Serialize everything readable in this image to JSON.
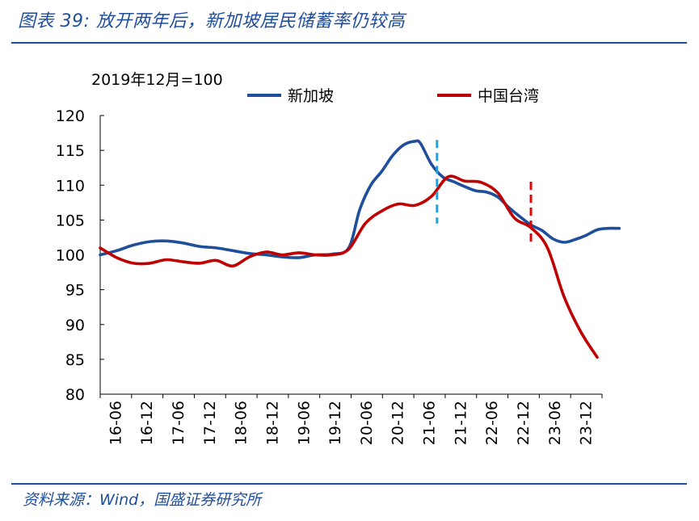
{
  "figure": {
    "title": "图表 39:  放开两年后，新加坡居民储蓄率仍较高",
    "source": "资料来源：Wind，国盛证券研究所"
  },
  "colors": {
    "accent": "#1f4e9c",
    "singapore": "#1f4e9c",
    "taiwan": "#c00000",
    "marker_cyan": "#1aa3e0",
    "marker_red": "#e00000"
  },
  "chart_data": {
    "type": "line",
    "unit_label": "2019年12月=100",
    "ylim": [
      80,
      120
    ],
    "yticks": [
      80,
      85,
      90,
      95,
      100,
      105,
      110,
      115,
      120
    ],
    "xticks": [
      "16-06",
      "16-12",
      "17-06",
      "17-12",
      "18-06",
      "18-12",
      "19-06",
      "19-12",
      "20-06",
      "20-12",
      "21-06",
      "21-12",
      "22-06",
      "22-12",
      "23-06",
      "23-12"
    ],
    "xrange": [
      0,
      90
    ],
    "grid": false,
    "legend_position": "top",
    "series": [
      {
        "name": "新加坡",
        "color": "#1f4e9c",
        "points": [
          [
            0,
            100.0
          ],
          [
            3,
            100.6
          ],
          [
            6,
            101.4
          ],
          [
            9,
            101.9
          ],
          [
            12,
            102.0
          ],
          [
            15,
            101.7
          ],
          [
            18,
            101.2
          ],
          [
            21,
            101.0
          ],
          [
            24,
            100.6
          ],
          [
            27,
            100.2
          ],
          [
            30,
            100.0
          ],
          [
            33,
            99.7
          ],
          [
            36,
            99.6
          ],
          [
            39,
            100.0
          ],
          [
            42,
            100.1
          ],
          [
            45,
            101.0
          ],
          [
            47,
            106.5
          ],
          [
            49,
            110.0
          ],
          [
            51,
            112.0
          ],
          [
            53,
            114.3
          ],
          [
            55,
            115.8
          ],
          [
            57,
            116.3
          ],
          [
            58,
            116.0
          ],
          [
            60,
            113.0
          ],
          [
            62,
            111.2
          ],
          [
            64,
            110.5
          ],
          [
            66,
            109.8
          ],
          [
            68,
            109.2
          ],
          [
            70,
            109.0
          ],
          [
            72,
            108.3
          ],
          [
            74,
            106.8
          ],
          [
            76,
            105.5
          ],
          [
            78,
            104.3
          ],
          [
            80,
            103.5
          ],
          [
            82,
            102.3
          ],
          [
            84,
            101.8
          ],
          [
            86,
            102.2
          ],
          [
            88,
            102.8
          ],
          [
            90,
            103.6
          ],
          [
            92,
            103.8
          ],
          [
            94,
            103.8
          ]
        ]
      },
      {
        "name": "中国台湾",
        "color": "#c00000",
        "points": [
          [
            0,
            101.0
          ],
          [
            3,
            99.6
          ],
          [
            6,
            98.8
          ],
          [
            9,
            98.8
          ],
          [
            12,
            99.3
          ],
          [
            15,
            99.0
          ],
          [
            18,
            98.8
          ],
          [
            21,
            99.2
          ],
          [
            24,
            98.4
          ],
          [
            27,
            99.7
          ],
          [
            30,
            100.4
          ],
          [
            33,
            100.0
          ],
          [
            36,
            100.3
          ],
          [
            39,
            100.0
          ],
          [
            42,
            100.0
          ],
          [
            45,
            100.8
          ],
          [
            48,
            104.5
          ],
          [
            51,
            106.3
          ],
          [
            54,
            107.3
          ],
          [
            57,
            107.1
          ],
          [
            60,
            108.4
          ],
          [
            63,
            111.2
          ],
          [
            66,
            110.6
          ],
          [
            69,
            110.4
          ],
          [
            72,
            108.9
          ],
          [
            75,
            105.3
          ],
          [
            78,
            103.9
          ],
          [
            81,
            101.0
          ],
          [
            84,
            94.0
          ],
          [
            87,
            89.0
          ],
          [
            90,
            85.3
          ]
        ]
      }
    ],
    "markers": [
      {
        "x": 61,
        "y0": 104.5,
        "y1": 116.5,
        "color": "#1aa3e0"
      },
      {
        "x": 78,
        "y0": 101.2,
        "y1": 110.5,
        "color": "#e00000"
      }
    ]
  }
}
